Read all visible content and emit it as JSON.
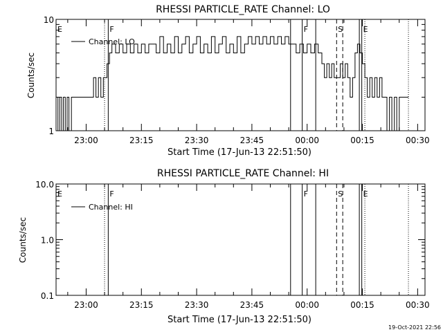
{
  "timestamp": "19-Oct-2021 22:56",
  "colors": {
    "foreground": "#000000",
    "background": "#ffffff"
  },
  "chart_data": [
    {
      "type": "line",
      "title": "RHESSI PARTICLE_RATE Channel: LO",
      "xlabel": "Start Time (17-Jun-13 22:51:50)",
      "ylabel": "Counts/sec",
      "y_scale": "log",
      "ylim": [
        1,
        10
      ],
      "y_ticks": [
        "1",
        "10"
      ],
      "x_start": "22:51:50",
      "x_end": "00:32:00",
      "x_ticks": [
        "23:00",
        "23:15",
        "23:30",
        "23:45",
        "00:00",
        "00:15",
        "00:30"
      ],
      "legend": {
        "label": "Channel: LO",
        "placement": "top-left"
      },
      "markers": [
        {
          "label": "E",
          "time": "22:51:50",
          "style": "solid"
        },
        {
          "label": "",
          "time": "23:05:00",
          "style": "dotted"
        },
        {
          "label": "F",
          "time": "23:06:00",
          "style": "solid"
        },
        {
          "label": "",
          "time": "23:55:30",
          "style": "solid"
        },
        {
          "label": "F",
          "time": "23:58:40",
          "style": "solid"
        },
        {
          "label": "",
          "time": "00:02:20",
          "style": "solid"
        },
        {
          "label": "S",
          "time": "00:08:00",
          "style": "dashed"
        },
        {
          "label": "",
          "time": "00:09:40",
          "style": "dashed"
        },
        {
          "label": "",
          "time": "00:14:10",
          "style": "solid"
        },
        {
          "label": "E",
          "time": "00:14:50",
          "style": "solid"
        },
        {
          "label": "",
          "time": "00:15:40",
          "style": "dotted"
        },
        {
          "label": "",
          "time": "00:27:30",
          "style": "dotted"
        }
      ],
      "series": [
        {
          "name": "Channel: LO",
          "points": [
            [
              "22:51:50",
              2
            ],
            [
              "22:52:20",
              1
            ],
            [
              "22:52:50",
              2
            ],
            [
              "22:53:20",
              1
            ],
            [
              "22:53:50",
              2
            ],
            [
              "22:54:20",
              1
            ],
            [
              "22:54:50",
              2
            ],
            [
              "22:55:20",
              1
            ],
            [
              "22:56:00",
              2
            ],
            [
              "22:58:00",
              2
            ],
            [
              "22:59:00",
              2
            ],
            [
              "23:00:00",
              2
            ],
            [
              "23:01:00",
              2
            ],
            [
              "23:02:00",
              3
            ],
            [
              "23:02:40",
              2
            ],
            [
              "23:03:20",
              3
            ],
            [
              "23:04:00",
              2
            ],
            [
              "23:04:40",
              3
            ],
            [
              "23:05:20",
              3
            ],
            [
              "23:05:40",
              4
            ],
            [
              "23:06:20",
              5
            ],
            [
              "23:07:00",
              6
            ],
            [
              "23:08:00",
              5
            ],
            [
              "23:09:00",
              6
            ],
            [
              "23:10:00",
              5
            ],
            [
              "23:11:00",
              6
            ],
            [
              "23:12:00",
              5
            ],
            [
              "23:13:00",
              6
            ],
            [
              "23:14:00",
              5
            ],
            [
              "23:15:00",
              6
            ],
            [
              "23:16:00",
              5
            ],
            [
              "23:17:00",
              6
            ],
            [
              "23:18:00",
              6
            ],
            [
              "23:19:00",
              5
            ],
            [
              "23:20:00",
              7
            ],
            [
              "23:21:00",
              5
            ],
            [
              "23:22:00",
              6
            ],
            [
              "23:23:00",
              5
            ],
            [
              "23:24:00",
              7
            ],
            [
              "23:25:00",
              5
            ],
            [
              "23:26:00",
              6
            ],
            [
              "23:27:00",
              7
            ],
            [
              "23:28:00",
              5
            ],
            [
              "23:29:00",
              6
            ],
            [
              "23:30:00",
              7
            ],
            [
              "23:31:00",
              5
            ],
            [
              "23:32:00",
              6
            ],
            [
              "23:33:00",
              5
            ],
            [
              "23:34:00",
              7
            ],
            [
              "23:35:00",
              5
            ],
            [
              "23:36:00",
              6
            ],
            [
              "23:37:00",
              7
            ],
            [
              "23:38:00",
              5
            ],
            [
              "23:39:00",
              6
            ],
            [
              "23:40:00",
              5
            ],
            [
              "23:41:00",
              7
            ],
            [
              "23:42:00",
              5
            ],
            [
              "23:43:00",
              6
            ],
            [
              "23:44:00",
              7
            ],
            [
              "23:45:00",
              6
            ],
            [
              "23:46:00",
              7
            ],
            [
              "23:47:00",
              6
            ],
            [
              "23:48:00",
              7
            ],
            [
              "23:49:00",
              6
            ],
            [
              "23:50:00",
              7
            ],
            [
              "23:51:00",
              6
            ],
            [
              "23:52:00",
              7
            ],
            [
              "23:53:00",
              6
            ],
            [
              "23:54:00",
              7
            ],
            [
              "23:55:00",
              6
            ],
            [
              "23:56:00",
              6
            ],
            [
              "23:57:00",
              5
            ],
            [
              "23:58:00",
              6
            ],
            [
              "23:59:00",
              5
            ],
            [
              "00:00:00",
              6
            ],
            [
              "00:01:00",
              5
            ],
            [
              "00:02:00",
              6
            ],
            [
              "00:03:00",
              5
            ],
            [
              "00:04:00",
              4
            ],
            [
              "00:04:40",
              3
            ],
            [
              "00:05:20",
              4
            ],
            [
              "00:06:00",
              3
            ],
            [
              "00:06:40",
              4
            ],
            [
              "00:07:20",
              3
            ],
            [
              "00:08:00",
              3
            ],
            [
              "00:09:00",
              4
            ],
            [
              "00:09:40",
              3
            ],
            [
              "00:10:20",
              4
            ],
            [
              "00:11:00",
              3
            ],
            [
              "00:11:40",
              2
            ],
            [
              "00:12:20",
              3
            ],
            [
              "00:13:00",
              5
            ],
            [
              "00:13:40",
              6
            ],
            [
              "00:14:20",
              5
            ],
            [
              "00:15:00",
              4
            ],
            [
              "00:15:40",
              3
            ],
            [
              "00:16:20",
              2
            ],
            [
              "00:17:00",
              3
            ],
            [
              "00:17:40",
              2
            ],
            [
              "00:18:20",
              3
            ],
            [
              "00:19:00",
              2
            ],
            [
              "00:19:40",
              3
            ],
            [
              "00:20:20",
              2
            ],
            [
              "00:21:00",
              2
            ],
            [
              "00:21:40",
              1
            ],
            [
              "00:22:20",
              2
            ],
            [
              "00:23:00",
              1
            ],
            [
              "00:23:40",
              2
            ],
            [
              "00:24:20",
              1
            ],
            [
              "00:25:00",
              2
            ],
            [
              "00:26:00",
              2
            ],
            [
              "00:27:00",
              2
            ],
            [
              "00:27:30",
              2
            ]
          ]
        }
      ]
    },
    {
      "type": "line",
      "title": "RHESSI PARTICLE_RATE Channel: HI",
      "xlabel": "Start Time (17-Jun-13 22:51:50)",
      "ylabel": "Counts/sec",
      "y_scale": "log",
      "ylim": [
        0.1,
        10
      ],
      "y_ticks": [
        "0.1",
        "1.0",
        "10.0"
      ],
      "x_start": "22:51:50",
      "x_end": "00:32:00",
      "x_ticks": [
        "23:00",
        "23:15",
        "23:30",
        "23:45",
        "00:00",
        "00:15",
        "00:30"
      ],
      "legend": {
        "label": "Channel: HI",
        "placement": "top-left"
      },
      "markers": [
        {
          "label": "E",
          "time": "22:51:50",
          "style": "solid"
        },
        {
          "label": "",
          "time": "23:05:00",
          "style": "dotted"
        },
        {
          "label": "F",
          "time": "23:06:00",
          "style": "solid"
        },
        {
          "label": "",
          "time": "23:55:30",
          "style": "solid"
        },
        {
          "label": "F",
          "time": "23:58:40",
          "style": "solid"
        },
        {
          "label": "",
          "time": "00:02:20",
          "style": "solid"
        },
        {
          "label": "S",
          "time": "00:08:00",
          "style": "dashed"
        },
        {
          "label": "",
          "time": "00:09:40",
          "style": "dashed"
        },
        {
          "label": "",
          "time": "00:14:10",
          "style": "solid"
        },
        {
          "label": "E",
          "time": "00:14:50",
          "style": "solid"
        },
        {
          "label": "",
          "time": "00:15:40",
          "style": "dotted"
        },
        {
          "label": "",
          "time": "00:27:30",
          "style": "dotted"
        }
      ],
      "series": [
        {
          "name": "Channel: HI",
          "points": []
        }
      ]
    }
  ]
}
